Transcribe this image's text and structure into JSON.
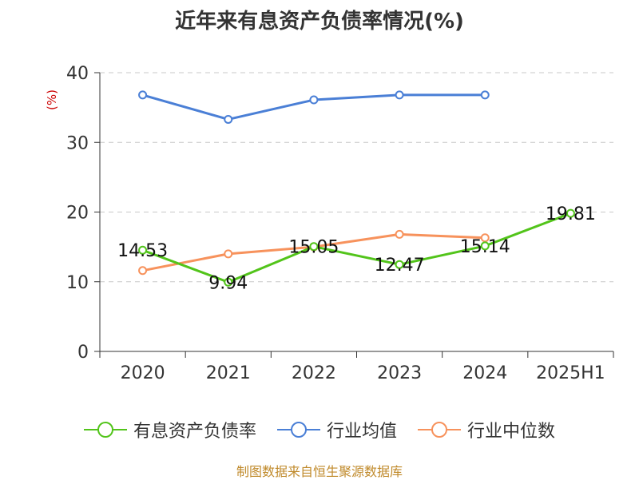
{
  "chart_data": {
    "type": "line",
    "title": "近年来有息资产负债率情况(%)",
    "ylabel": "(%)",
    "categories": [
      "2020",
      "2021",
      "2022",
      "2023",
      "2024",
      "2025H1"
    ],
    "yticks": [
      "0",
      "10",
      "20",
      "30",
      "40"
    ],
    "ylim": [
      0,
      40
    ],
    "grid": true,
    "legend_position": "bottom",
    "series": [
      {
        "name": "有息资产负债率",
        "color": "#52c41a",
        "values": [
          14.53,
          9.94,
          15.05,
          12.47,
          15.14,
          19.81
        ],
        "labels": [
          "14.53",
          "9.94",
          "15.05",
          "12.47",
          "15.14",
          "19.81"
        ]
      },
      {
        "name": "行业均值",
        "color": "#4a7fd6",
        "values": [
          36.8,
          33.3,
          36.1,
          36.8,
          36.8,
          null
        ]
      },
      {
        "name": "行业中位数",
        "color": "#f7925c",
        "values": [
          11.6,
          14.0,
          15.0,
          16.8,
          16.3,
          null
        ]
      }
    ]
  },
  "footer": "制图数据来自恒生聚源数据库"
}
